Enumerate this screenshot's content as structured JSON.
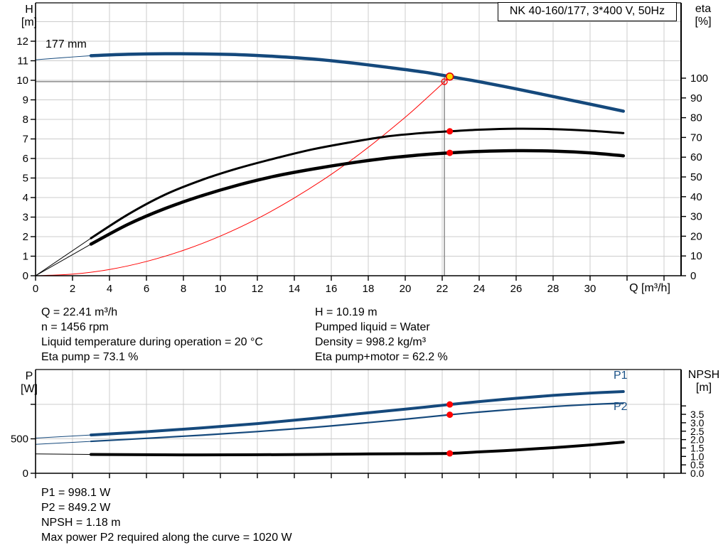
{
  "title_box": {
    "label": "NK 40-160/177, 3*400 V, 50Hz"
  },
  "colors": {
    "curve_blue": "#15497c",
    "blue_text": "#1a5186",
    "red": "#ff0000",
    "duty_yellow": "#ffd900",
    "duty_ring": "#e00000",
    "gray_line": "#8c8c8c",
    "grid": "#cccccc",
    "axis": "#000000",
    "text": "#000000"
  },
  "info_block": {
    "left": [
      "Q = 22.41 m³/h",
      "n = 1456 rpm",
      "Liquid temperature during operation = 20 °C",
      "Eta pump = 73.1 %"
    ],
    "right": [
      "H = 10.19 m",
      "Pumped liquid = Water",
      "Density = 998.2 kg/m³",
      "Eta pump+motor = 62.2 %"
    ]
  },
  "result_block": {
    "lines": [
      "P1 = 998.1 W",
      "P2 = 849.2 W",
      "NPSH = 1.18 m",
      "Max power P2 required along the curve = 1020 W"
    ]
  },
  "chart_data": [
    {
      "id": "head",
      "type": "line",
      "title": "NK 40-160/177, 3*400 V, 50Hz",
      "x_axis": {
        "label": "Q [m³/h]",
        "min": 0,
        "max": 34.9,
        "ticks": [
          0,
          2,
          4,
          6,
          8,
          10,
          12,
          14,
          16,
          18,
          20,
          22,
          24,
          26,
          28,
          30,
          32,
          34
        ],
        "tick_labels": [
          "0",
          "2",
          "4",
          "6",
          "8",
          "10",
          "12",
          "14",
          "16",
          "18",
          "20",
          "22",
          "24",
          "26",
          "28",
          "30",
          "",
          ""
        ]
      },
      "y_left": {
        "label": "H\n[m]",
        "min": 0,
        "max": 13.96,
        "ticks": [
          0,
          1,
          2,
          3,
          4,
          5,
          6,
          7,
          8,
          9,
          10,
          11,
          12
        ],
        "tick_labels": [
          "0",
          "1",
          "2",
          "3",
          "4",
          "5",
          "6",
          "7",
          "8",
          "9",
          "10",
          "11",
          "12"
        ]
      },
      "y_right": {
        "label": "eta\n[%]",
        "min": 0,
        "max": 100,
        "ticks": [
          0,
          10,
          20,
          30,
          40,
          50,
          60,
          70,
          80,
          90,
          100
        ],
        "tick_labels": [
          "0",
          "10",
          "20",
          "30",
          "40",
          "50",
          "60",
          "70",
          "80",
          "90",
          "100"
        ]
      },
      "series": [
        {
          "name": "177 mm",
          "axis": "H",
          "color": "curve_blue",
          "width": 4.5,
          "thin_points": [
            [
              0,
              11.05
            ],
            [
              1.5,
              11.16
            ],
            [
              3,
              11.26
            ]
          ],
          "points": [
            [
              3,
              11.26
            ],
            [
              5,
              11.33
            ],
            [
              7,
              11.36
            ],
            [
              9,
              11.35
            ],
            [
              11,
              11.31
            ],
            [
              13,
              11.22
            ],
            [
              15,
              11.09
            ],
            [
              17,
              10.9
            ],
            [
              19,
              10.67
            ],
            [
              21,
              10.42
            ],
            [
              22.41,
              10.19
            ],
            [
              24,
              9.93
            ],
            [
              26,
              9.56
            ],
            [
              28,
              9.17
            ],
            [
              30,
              8.78
            ],
            [
              31.8,
              8.42
            ]
          ]
        },
        {
          "name": "Eta pump",
          "axis": "eta",
          "color": "axis",
          "width": 3,
          "thin_points": [
            [
              0,
              0
            ],
            [
              3,
              19
            ]
          ],
          "points": [
            [
              3,
              19
            ],
            [
              5,
              31
            ],
            [
              7,
              41
            ],
            [
              9,
              48.5
            ],
            [
              11,
              54.5
            ],
            [
              13,
              59.5
            ],
            [
              15,
              64
            ],
            [
              17,
              67.5
            ],
            [
              19,
              70.5
            ],
            [
              21,
              72.3
            ],
            [
              22.41,
              73.1
            ],
            [
              24,
              73.9
            ],
            [
              26,
              74.4
            ],
            [
              28,
              74.2
            ],
            [
              30,
              73.4
            ],
            [
              31.8,
              72.2
            ]
          ]
        },
        {
          "name": "Eta pump+motor",
          "axis": "eta",
          "color": "axis",
          "width": 4.5,
          "thin_points": [
            [
              0,
              0
            ],
            [
              3,
              16
            ]
          ],
          "points": [
            [
              3,
              16
            ],
            [
              5,
              26
            ],
            [
              7,
              34
            ],
            [
              9,
              40.5
            ],
            [
              11,
              46
            ],
            [
              13,
              50.5
            ],
            [
              15,
              54
            ],
            [
              17,
              57
            ],
            [
              19,
              59.5
            ],
            [
              21,
              61.3
            ],
            [
              22.41,
              62.2
            ],
            [
              24,
              62.9
            ],
            [
              26,
              63.3
            ],
            [
              28,
              63.1
            ],
            [
              30,
              62.2
            ],
            [
              31.8,
              60.7
            ]
          ]
        },
        {
          "name": "System curve",
          "axis": "H",
          "color": "red",
          "width": 1,
          "points": [
            [
              0,
              0
            ],
            [
              2,
              0.08
            ],
            [
              4,
              0.32
            ],
            [
              6,
              0.73
            ],
            [
              8,
              1.3
            ],
            [
              10,
              2.03
            ],
            [
              12,
              2.92
            ],
            [
              14,
              3.98
            ],
            [
              16,
              5.19
            ],
            [
              18,
              6.57
            ],
            [
              20,
              8.11
            ],
            [
              21,
              8.95
            ],
            [
              22,
              9.82
            ],
            [
              22.41,
              10.19
            ]
          ]
        }
      ],
      "markers": {
        "duty_point": {
          "q": 22.41,
          "h": 10.19
        },
        "curve_point": {
          "q": 22.12,
          "h": 9.93
        },
        "crosshair": {
          "q": 22.12,
          "h": 9.93
        },
        "eta_points": [
          {
            "q": 22.41,
            "eta": 73.1
          },
          {
            "q": 22.41,
            "eta": 62.2
          }
        ]
      }
    },
    {
      "id": "power",
      "type": "line",
      "x_axis": {
        "label": "Q [m³/h]",
        "min": 0,
        "max": 34.9,
        "ticks": [
          0,
          2,
          4,
          6,
          8,
          10,
          12,
          14,
          16,
          18,
          20,
          22,
          24,
          26,
          28,
          30,
          32,
          34
        ],
        "tick_labels": [
          "",
          "",
          "",
          "",
          "",
          "",
          "",
          "",
          "",
          "",
          "",
          "",
          "",
          "",
          "",
          "",
          "",
          ""
        ]
      },
      "y_left": {
        "label": "P\n[W]",
        "min": 0,
        "max": 1470,
        "ticks": [
          0,
          500,
          1000
        ],
        "tick_labels": [
          "0",
          "500",
          ""
        ]
      },
      "y_right": {
        "label": "NPSH\n[m]",
        "min": 0,
        "max": 4,
        "ticks": [
          0,
          0.5,
          1,
          1.5,
          2,
          2.5,
          3,
          3.5,
          4
        ],
        "tick_labels": [
          "0.0",
          "0.5",
          "1.0",
          "1.5",
          "2.0",
          "2.5",
          "3.0",
          "3.5",
          ""
        ]
      },
      "series": [
        {
          "name": "P1",
          "axis": "P",
          "color": "curve_blue",
          "width": 4,
          "thin_points": [
            [
              0,
              510
            ],
            [
              3,
              556
            ]
          ],
          "points": [
            [
              3,
              556
            ],
            [
              6,
              603
            ],
            [
              9,
              658
            ],
            [
              12,
              720
            ],
            [
              15,
              795
            ],
            [
              18,
              878
            ],
            [
              20,
              930
            ],
            [
              22.41,
              998
            ],
            [
              24,
              1040
            ],
            [
              26,
              1088
            ],
            [
              28,
              1130
            ],
            [
              30,
              1163
            ],
            [
              31.8,
              1185
            ]
          ]
        },
        {
          "name": "P2",
          "axis": "P",
          "color": "curve_blue",
          "width": 2.2,
          "thin_points": [
            [
              0,
              420
            ],
            [
              3,
              463
            ]
          ],
          "points": [
            [
              3,
              463
            ],
            [
              6,
              507
            ],
            [
              9,
              553
            ],
            [
              12,
              605
            ],
            [
              15,
              665
            ],
            [
              18,
              735
            ],
            [
              20,
              785
            ],
            [
              22.41,
              849
            ],
            [
              24,
              888
            ],
            [
              26,
              930
            ],
            [
              28,
              968
            ],
            [
              30,
              998
            ],
            [
              31.8,
              1018
            ]
          ]
        },
        {
          "name": "NPSH",
          "axis": "NPSH",
          "color": "axis",
          "width": 4,
          "thin_points": [
            [
              0,
              1.15
            ],
            [
              3,
              1.12
            ]
          ],
          "points": [
            [
              3,
              1.12
            ],
            [
              6,
              1.1
            ],
            [
              9,
              1.09
            ],
            [
              12,
              1.1
            ],
            [
              15,
              1.12
            ],
            [
              18,
              1.15
            ],
            [
              20,
              1.16
            ],
            [
              22.41,
              1.18
            ],
            [
              24,
              1.27
            ],
            [
              26,
              1.38
            ],
            [
              28,
              1.52
            ],
            [
              30,
              1.68
            ],
            [
              31.8,
              1.85
            ]
          ]
        }
      ],
      "markers": {
        "points": [
          {
            "q": 22.41,
            "axis": "P",
            "v": 998.1
          },
          {
            "q": 22.41,
            "axis": "P",
            "v": 849.2
          },
          {
            "q": 22.41,
            "axis": "NPSH",
            "v": 1.18
          }
        ]
      }
    }
  ]
}
